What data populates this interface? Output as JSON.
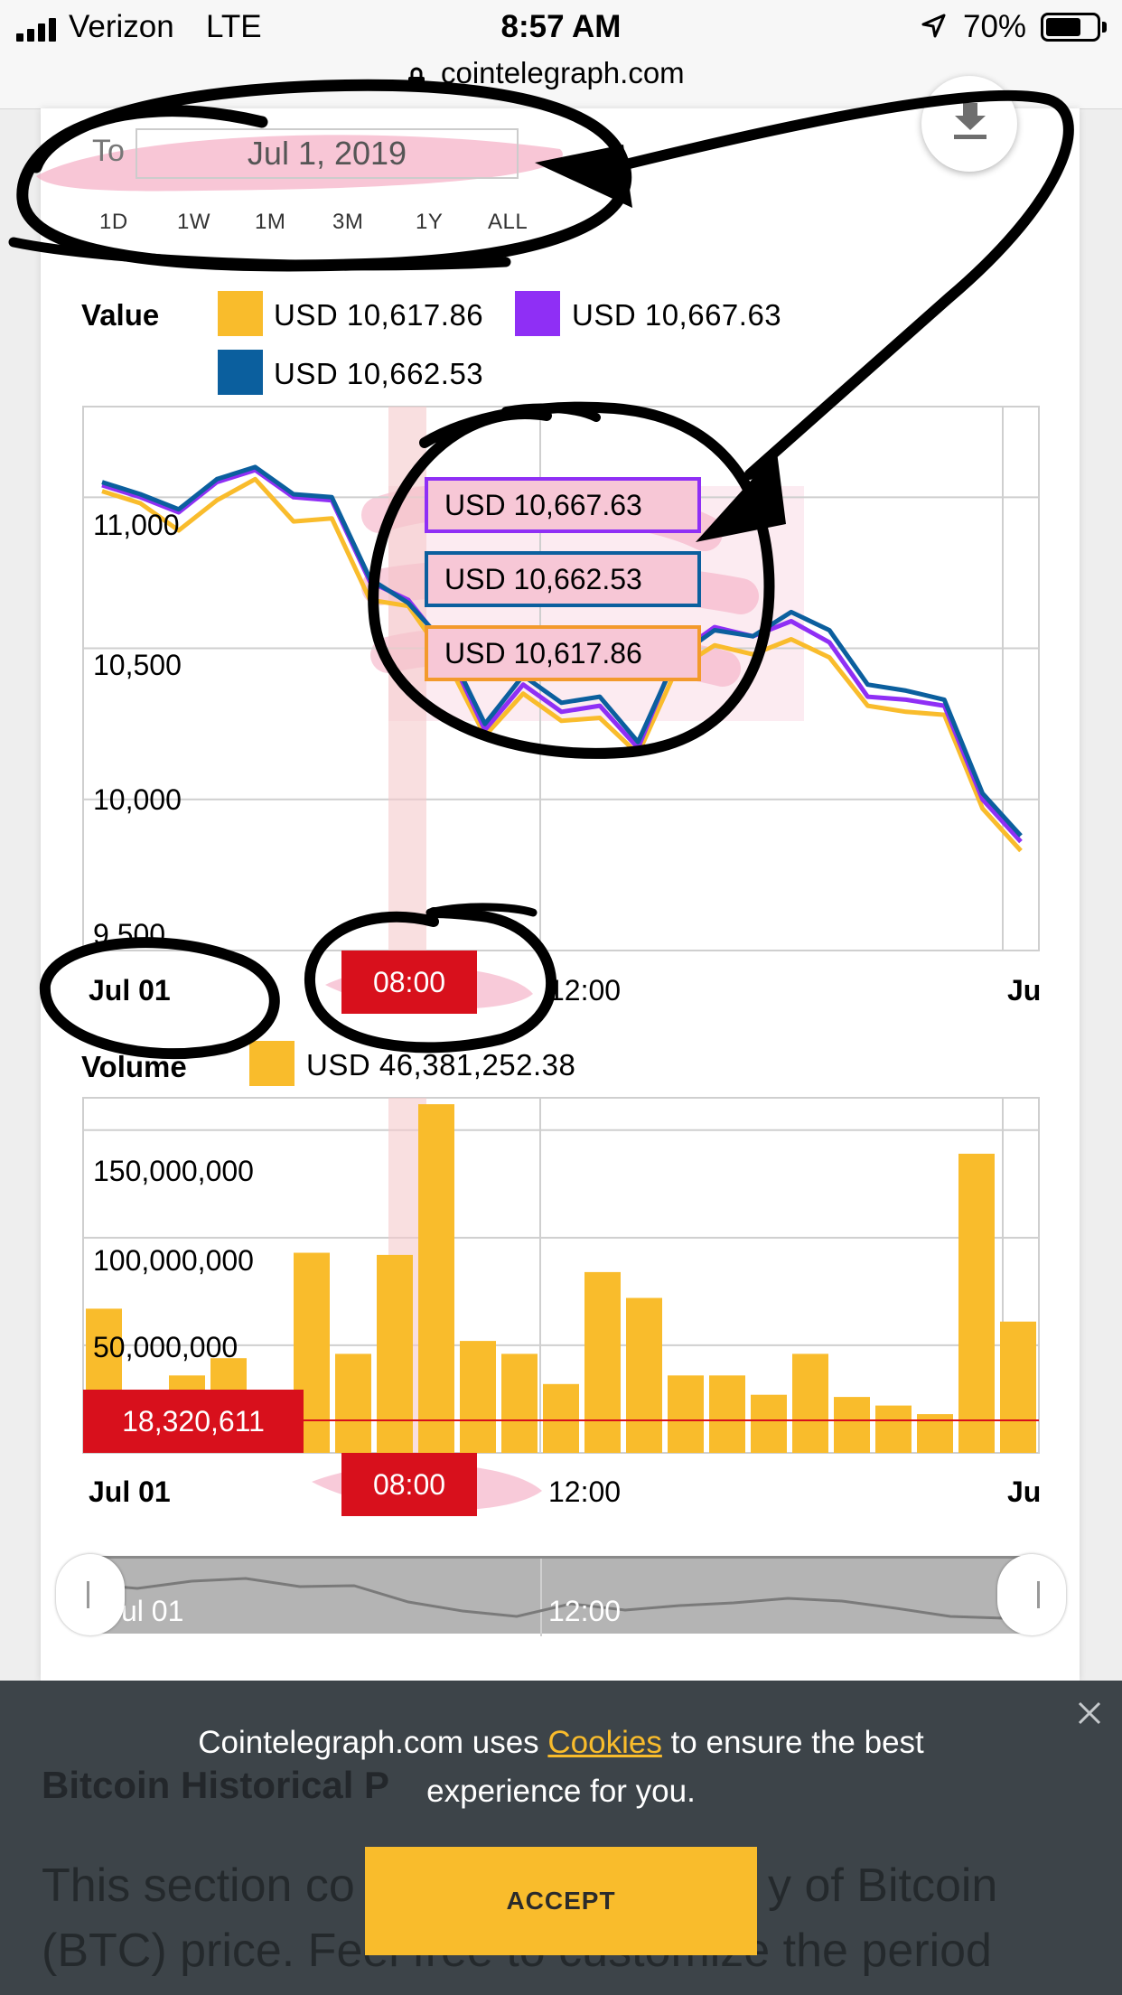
{
  "status_bar": {
    "carrier": "Verizon",
    "network": "LTE",
    "time": "8:57 AM",
    "battery_percent": "70%",
    "battery_level": 0.7
  },
  "browser": {
    "url": "cointelegraph.com"
  },
  "date_range": {
    "to_label": "To",
    "to_value": "Jul 1, 2019",
    "buttons": [
      "1D",
      "1W",
      "1M",
      "3M",
      "1Y",
      "ALL"
    ]
  },
  "value_legend": {
    "title": "Value",
    "items": [
      {
        "label": "USD  10,617.86",
        "color": "#f9bc2c"
      },
      {
        "label": "USD  10,667.63",
        "color": "#8f2ff5"
      },
      {
        "label": "USD  10,662.53",
        "color": "#0b5f9e"
      }
    ]
  },
  "tooltips": {
    "high": "USD 10,667.63",
    "close": "USD 10,662.53",
    "low": "USD 10,617.86"
  },
  "value_axis": {
    "ticks": [
      "11,000",
      "10,500",
      "10,000",
      "9,500"
    ]
  },
  "x_axis": {
    "start": "Jul 01",
    "cursor": "08:00",
    "mid": "12:00",
    "end": "Ju"
  },
  "volume_legend": {
    "title": "Volume",
    "value": "USD  46,381,252.38",
    "color": "#f9bc2c"
  },
  "volume_axis": {
    "ticks": [
      "150,000,000",
      "100,000,000",
      "50,000,000"
    ],
    "cursor_value": "18,320,611"
  },
  "navigator": {
    "start": "ul 01",
    "mid": "12:00"
  },
  "cookie_banner": {
    "text_before": "Cointelegraph.com uses ",
    "link": "Cookies",
    "text_after": " to ensure the best experience for you.",
    "accept": "ACCEPT"
  },
  "background_content": {
    "heading": "Bitcoin Historical P",
    "body_line1": "This section co",
    "body_line1_end": "y of Bitcoin",
    "body_line2": "(BTC) price. Feel free to customize the period"
  },
  "chart_data": [
    {
      "type": "line",
      "title": "Value",
      "ylim": [
        9500,
        11300
      ],
      "x_start": "Jul 01",
      "x_labels": [
        "Jul 01",
        "08:00",
        "12:00"
      ],
      "series": [
        {
          "name": "USD  10,617.86",
          "color": "#f9bc2c",
          "values": [
            11020,
            10980,
            10890,
            10990,
            11060,
            10920,
            10930,
            10660,
            10640,
            10460,
            10210,
            10350,
            10260,
            10270,
            10150,
            10430,
            10510,
            10480,
            10530,
            10470,
            10310,
            10290,
            10280,
            9970,
            9830
          ]
        },
        {
          "name": "USD  10,667.63",
          "color": "#8f2ff5",
          "values": [
            11040,
            11000,
            10950,
            11050,
            11090,
            11000,
            10990,
            10720,
            10660,
            10500,
            10230,
            10380,
            10290,
            10310,
            10170,
            10480,
            10570,
            10540,
            10590,
            10520,
            10340,
            10330,
            10310,
            10000,
            9860
          ]
        },
        {
          "name": "USD  10,662.53",
          "color": "#0b5f9e",
          "values": [
            11050,
            11010,
            10960,
            11060,
            11100,
            11010,
            11000,
            10730,
            10650,
            10510,
            10250,
            10410,
            10320,
            10340,
            10190,
            10470,
            10560,
            10540,
            10620,
            10560,
            10380,
            10360,
            10330,
            10020,
            9880
          ]
        }
      ]
    },
    {
      "type": "bar",
      "title": "Volume",
      "ylim": [
        0,
        165000000
      ],
      "x_labels": [
        "Jul 01",
        "08:00",
        "12:00"
      ],
      "series": [
        {
          "name": "USD  46,381,252.38",
          "color": "#f9bc2c",
          "values": [
            67000000,
            18000000,
            36000000,
            44000000,
            24000000,
            93000000,
            46000000,
            92000000,
            162000000,
            52000000,
            46000000,
            32000000,
            84000000,
            72000000,
            36000000,
            36000000,
            27000000,
            46000000,
            26000000,
            22000000,
            18000000,
            139000000,
            61000000
          ]
        }
      ]
    }
  ]
}
